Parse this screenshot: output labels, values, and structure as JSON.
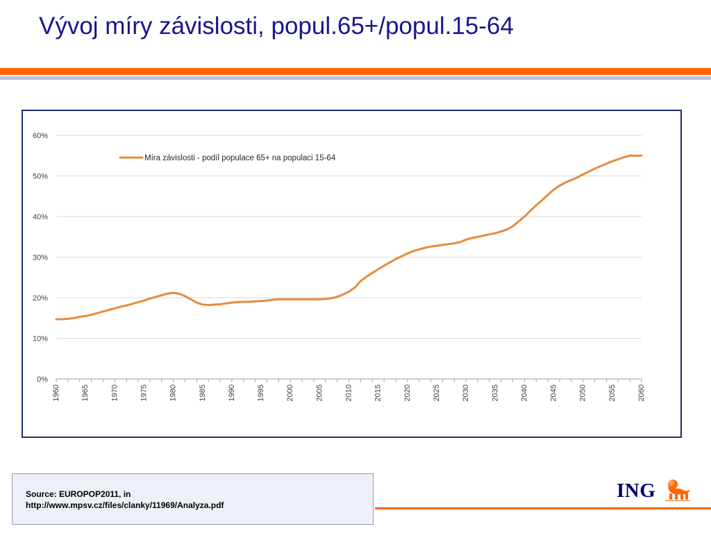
{
  "slide": {
    "title": "Vývoj míry závislosti, popul.65+/popul.15-64"
  },
  "chart_data": {
    "type": "line",
    "title": "",
    "xlabel": "",
    "ylabel": "",
    "x": [
      1960,
      1961,
      1962,
      1963,
      1964,
      1965,
      1966,
      1967,
      1968,
      1969,
      1970,
      1971,
      1972,
      1973,
      1974,
      1975,
      1976,
      1977,
      1978,
      1979,
      1980,
      1981,
      1982,
      1983,
      1984,
      1985,
      1986,
      1987,
      1988,
      1989,
      1990,
      1991,
      1992,
      1993,
      1994,
      1995,
      1996,
      1997,
      1998,
      1999,
      2000,
      2001,
      2002,
      2003,
      2004,
      2005,
      2006,
      2007,
      2008,
      2009,
      2010,
      2011,
      2012,
      2013,
      2014,
      2015,
      2016,
      2017,
      2018,
      2019,
      2020,
      2021,
      2022,
      2023,
      2024,
      2025,
      2026,
      2027,
      2028,
      2029,
      2030,
      2031,
      2032,
      2033,
      2034,
      2035,
      2036,
      2037,
      2038,
      2039,
      2040,
      2041,
      2042,
      2043,
      2044,
      2045,
      2046,
      2047,
      2048,
      2049,
      2050,
      2051,
      2052,
      2053,
      2054,
      2055,
      2056,
      2057,
      2058,
      2059,
      2060
    ],
    "series": [
      {
        "name": "Míra závislosti - podíl populace 65+ na populaci 15-64",
        "color": "#e8893a",
        "values": [
          14.7,
          14.7,
          14.8,
          15.0,
          15.3,
          15.5,
          15.8,
          16.2,
          16.6,
          17.0,
          17.4,
          17.8,
          18.1,
          18.5,
          18.9,
          19.3,
          19.8,
          20.2,
          20.6,
          21.0,
          21.2,
          21.0,
          20.4,
          19.6,
          18.8,
          18.3,
          18.2,
          18.3,
          18.4,
          18.6,
          18.8,
          18.9,
          19.0,
          19.0,
          19.1,
          19.2,
          19.3,
          19.5,
          19.6,
          19.6,
          19.6,
          19.6,
          19.6,
          19.6,
          19.6,
          19.6,
          19.7,
          19.9,
          20.2,
          20.8,
          21.5,
          22.5,
          24.1,
          25.2,
          26.1,
          27.0,
          27.9,
          28.7,
          29.5,
          30.2,
          30.9,
          31.5,
          31.9,
          32.3,
          32.6,
          32.8,
          33.0,
          33.2,
          33.4,
          33.7,
          34.3,
          34.7,
          35.0,
          35.3,
          35.6,
          35.9,
          36.3,
          36.8,
          37.6,
          38.8,
          40.0,
          41.4,
          42.8,
          44.0,
          45.4,
          46.6,
          47.6,
          48.4,
          49.0,
          49.6,
          50.4,
          51.1,
          51.8,
          52.4,
          53.0,
          53.6,
          54.1,
          54.6,
          55.0,
          55.0,
          55.0
        ]
      }
    ],
    "ylim": [
      0,
      60
    ],
    "y_ticks": [
      "0%",
      "10%",
      "20%",
      "30%",
      "40%",
      "50%",
      "60%"
    ],
    "x_tick_labels": [
      "1960",
      "1965",
      "1970",
      "1975",
      "1980",
      "1985",
      "1990",
      "1995",
      "2000",
      "2005",
      "2010",
      "2015",
      "2020",
      "2025",
      "2030",
      "2035",
      "2040",
      "2045",
      "2050",
      "2055",
      "2060"
    ],
    "grid": "horizontal",
    "legend_position": "top-left"
  },
  "source": {
    "line1": "Source: EUROPOP2011, in",
    "line2": "http://www.mpsv.cz/files/clanky/11969/Analyza.pdf"
  },
  "logo": {
    "text": "ING",
    "icon": "lion-icon",
    "lion_color": "#ff6600",
    "text_color": "#000066"
  }
}
